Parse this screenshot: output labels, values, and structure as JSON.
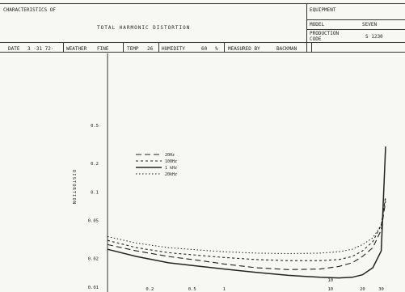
{
  "header": {
    "characteristics_label": "CHARACTERISTICS OF",
    "title": "TOTAL HARMONIC DISTORTION",
    "equipment_label": "EQUIPMENT",
    "model_label": "MODEL",
    "model_value": "SEVEN",
    "production_code_label": "PRODUCTION CODE",
    "production_code_value": "S 1230"
  },
  "info_row": {
    "date_label": "DATE",
    "date_value": "3 ·31 72·",
    "weather_label": "WEATHER",
    "weather_value": "FINE",
    "temp_label": "TEMP",
    "temp_value": "26",
    "humidity_label": "HUMIDITY",
    "humidity_value": "60",
    "humidity_unit": "%",
    "measured_by_label": "MEASURED BY",
    "measured_by_value": "BACKMAN"
  },
  "chart_data": {
    "type": "line",
    "title": "",
    "xlabel": "",
    "ylabel": "DISTORTION",
    "y_scale": "log",
    "x_scale": "log",
    "ylim": [
      0.01,
      0.5
    ],
    "xlim": [
      0.08,
      40
    ],
    "y_ticks": [
      0.01,
      0.02,
      0.05,
      0.1,
      0.2,
      0.5
    ],
    "y_tick_labels": [
      "0.01",
      "0.02",
      "0.05",
      "0.1",
      "0.2",
      "0.5"
    ],
    "x_ticks": [
      0.2,
      0.5,
      1,
      10,
      20,
      30
    ],
    "x_tick_labels": [
      "0.2",
      "0.5",
      "1",
      "10",
      "20",
      "30"
    ],
    "legend_position": "upper-left",
    "series": [
      {
        "name": "20Hz",
        "style": "dashed-long",
        "x": [
          0.08,
          0.15,
          0.3,
          0.6,
          1,
          2,
          4,
          8,
          12,
          16,
          20,
          25,
          30,
          33
        ],
        "y": [
          0.028,
          0.024,
          0.021,
          0.019,
          0.0175,
          0.016,
          0.0153,
          0.0155,
          0.0165,
          0.018,
          0.021,
          0.026,
          0.04,
          0.08
        ]
      },
      {
        "name": "100Hz",
        "style": "dashed-short",
        "x": [
          0.08,
          0.15,
          0.3,
          0.6,
          1,
          2,
          4,
          8,
          12,
          16,
          20,
          25,
          30,
          33
        ],
        "y": [
          0.031,
          0.026,
          0.023,
          0.0215,
          0.0205,
          0.0195,
          0.019,
          0.019,
          0.0195,
          0.021,
          0.024,
          0.03,
          0.045,
          0.09
        ]
      },
      {
        "name": "1 kHz",
        "style": "solid",
        "x": [
          0.08,
          0.15,
          0.3,
          0.6,
          1,
          2,
          4,
          8,
          12,
          16,
          20,
          25,
          30,
          33
        ],
        "y": [
          0.025,
          0.021,
          0.018,
          0.0165,
          0.0155,
          0.0143,
          0.0133,
          0.0127,
          0.0125,
          0.0127,
          0.0135,
          0.016,
          0.024,
          0.3
        ]
      },
      {
        "name": "20kHz",
        "style": "dotted",
        "x": [
          0.08,
          0.15,
          0.3,
          0.6,
          1,
          2,
          4,
          8,
          12,
          16,
          20,
          25,
          30,
          33
        ],
        "y": [
          0.034,
          0.029,
          0.026,
          0.0245,
          0.0235,
          0.0228,
          0.0225,
          0.0228,
          0.0235,
          0.025,
          0.028,
          0.033,
          0.045,
          0.085
        ]
      }
    ],
    "annotations": [
      {
        "text": "10",
        "x": 10,
        "y": 0.0115
      }
    ],
    "grid": false
  },
  "colors": {
    "ink": "#222222",
    "paper": "#f7f7f4",
    "rule": "#333333"
  }
}
